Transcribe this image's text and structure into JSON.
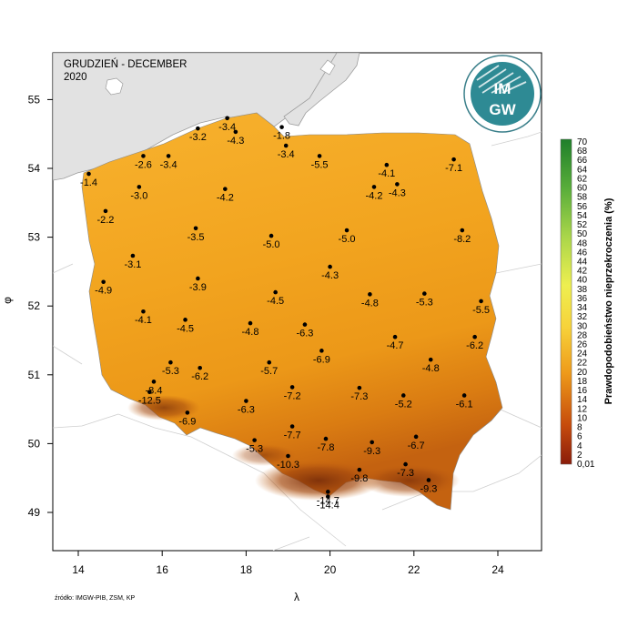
{
  "map": {
    "title": "GRUDZIEŃ - DECEMBER",
    "year": "2020",
    "xlabel": "λ",
    "ylabel": "φ",
    "source": "źródło: IMGW-PIB, ZSM, KP",
    "xlim": [
      13.5,
      25.2
    ],
    "ylim": [
      48.6,
      55.7
    ],
    "xticks": [
      14,
      16,
      18,
      20,
      22,
      24
    ],
    "yticks": [
      49,
      50,
      51,
      52,
      53,
      54,
      55
    ]
  },
  "logo": {
    "line1": "IM",
    "line2": "GW"
  },
  "colorbar": {
    "title": "Prawdopodobieństwo nieprzekroczenia (%)",
    "labels": [
      "70",
      "68",
      "66",
      "64",
      "62",
      "60",
      "58",
      "56",
      "54",
      "52",
      "50",
      "48",
      "46",
      "44",
      "42",
      "40",
      "38",
      "36",
      "34",
      "32",
      "30",
      "28",
      "26",
      "24",
      "22",
      "20",
      "18",
      "16",
      "14",
      "12",
      "10",
      "8",
      "6",
      "4",
      "2",
      "0,01"
    ]
  },
  "colors": {
    "sea": "#e2e2e2",
    "land_light": "#f7b22e",
    "land_mid": "#f0a21c",
    "land_dark": "#c46210",
    "mountain": "#8c3a0c"
  },
  "stations": [
    {
      "lon": 14.25,
      "lat": 53.92,
      "value": "-1.4"
    },
    {
      "lon": 15.55,
      "lat": 54.18,
      "value": "-2.6"
    },
    {
      "lon": 16.15,
      "lat": 54.18,
      "value": "-3.4"
    },
    {
      "lon": 16.85,
      "lat": 54.58,
      "value": "-3.2"
    },
    {
      "lon": 17.55,
      "lat": 54.73,
      "value": "-3.4"
    },
    {
      "lon": 17.75,
      "lat": 54.53,
      "value": "-4.3"
    },
    {
      "lon": 18.85,
      "lat": 54.6,
      "value": "-1.8"
    },
    {
      "lon": 18.95,
      "lat": 54.33,
      "value": "-3.4"
    },
    {
      "lon": 19.75,
      "lat": 54.18,
      "value": "-5.5"
    },
    {
      "lon": 15.45,
      "lat": 53.73,
      "value": "-3.0"
    },
    {
      "lon": 17.5,
      "lat": 53.7,
      "value": "-4.2"
    },
    {
      "lon": 14.65,
      "lat": 53.38,
      "value": "-2.2"
    },
    {
      "lon": 21.05,
      "lat": 53.73,
      "value": "-4.2"
    },
    {
      "lon": 21.35,
      "lat": 54.05,
      "value": "-4.1"
    },
    {
      "lon": 21.6,
      "lat": 53.77,
      "value": "-4.3"
    },
    {
      "lon": 22.95,
      "lat": 54.13,
      "value": "-7.1"
    },
    {
      "lon": 16.8,
      "lat": 53.13,
      "value": "-3.5"
    },
    {
      "lon": 18.6,
      "lat": 53.02,
      "value": "-5.0"
    },
    {
      "lon": 20.4,
      "lat": 53.1,
      "value": "-5.0"
    },
    {
      "lon": 23.15,
      "lat": 53.1,
      "value": "-8.2"
    },
    {
      "lon": 15.3,
      "lat": 52.73,
      "value": "-3.1"
    },
    {
      "lon": 20.0,
      "lat": 52.57,
      "value": "-4.3"
    },
    {
      "lon": 14.6,
      "lat": 52.35,
      "value": "-4.9"
    },
    {
      "lon": 16.85,
      "lat": 52.4,
      "value": "-3.9"
    },
    {
      "lon": 18.7,
      "lat": 52.2,
      "value": "-4.5"
    },
    {
      "lon": 20.95,
      "lat": 52.17,
      "value": "-4.8"
    },
    {
      "lon": 22.25,
      "lat": 52.18,
      "value": "-5.3"
    },
    {
      "lon": 23.6,
      "lat": 52.07,
      "value": "-5.5"
    },
    {
      "lon": 15.55,
      "lat": 51.92,
      "value": "-4.1"
    },
    {
      "lon": 16.55,
      "lat": 51.8,
      "value": "-4.5"
    },
    {
      "lon": 18.1,
      "lat": 51.75,
      "value": "-4.8"
    },
    {
      "lon": 19.4,
      "lat": 51.73,
      "value": "-6.3"
    },
    {
      "lon": 21.55,
      "lat": 51.55,
      "value": "-4.7"
    },
    {
      "lon": 23.45,
      "lat": 51.55,
      "value": "-6.2"
    },
    {
      "lon": 19.8,
      "lat": 51.35,
      "value": "-6.9"
    },
    {
      "lon": 16.2,
      "lat": 51.18,
      "value": "-5.3"
    },
    {
      "lon": 16.9,
      "lat": 51.1,
      "value": "-6.2"
    },
    {
      "lon": 18.55,
      "lat": 51.18,
      "value": "-5.7"
    },
    {
      "lon": 22.4,
      "lat": 51.22,
      "value": "-4.8"
    },
    {
      "lon": 15.8,
      "lat": 50.9,
      "value": "-8.4"
    },
    {
      "lon": 15.7,
      "lat": 50.75,
      "value": "-12.5"
    },
    {
      "lon": 19.1,
      "lat": 50.82,
      "value": "-7.2"
    },
    {
      "lon": 20.7,
      "lat": 50.81,
      "value": "-7.3"
    },
    {
      "lon": 21.75,
      "lat": 50.7,
      "value": "-5.2"
    },
    {
      "lon": 23.2,
      "lat": 50.7,
      "value": "-6.1"
    },
    {
      "lon": 18.0,
      "lat": 50.62,
      "value": "-6.3"
    },
    {
      "lon": 16.6,
      "lat": 50.45,
      "value": "-6.9"
    },
    {
      "lon": 19.1,
      "lat": 50.25,
      "value": "-7.7"
    },
    {
      "lon": 22.05,
      "lat": 50.1,
      "value": "-6.7"
    },
    {
      "lon": 18.2,
      "lat": 50.05,
      "value": "-5.3"
    },
    {
      "lon": 19.9,
      "lat": 50.07,
      "value": "-7.8"
    },
    {
      "lon": 21.0,
      "lat": 50.02,
      "value": "-9.3"
    },
    {
      "lon": 19.0,
      "lat": 49.82,
      "value": "-10.3"
    },
    {
      "lon": 20.7,
      "lat": 49.62,
      "value": "-9.8"
    },
    {
      "lon": 21.8,
      "lat": 49.7,
      "value": "-7.3"
    },
    {
      "lon": 22.35,
      "lat": 49.47,
      "value": "-9.3"
    },
    {
      "lon": 19.95,
      "lat": 49.3,
      "value": "-14.7"
    },
    {
      "lon": 19.95,
      "lat": 49.23,
      "value": "-14.4"
    }
  ]
}
